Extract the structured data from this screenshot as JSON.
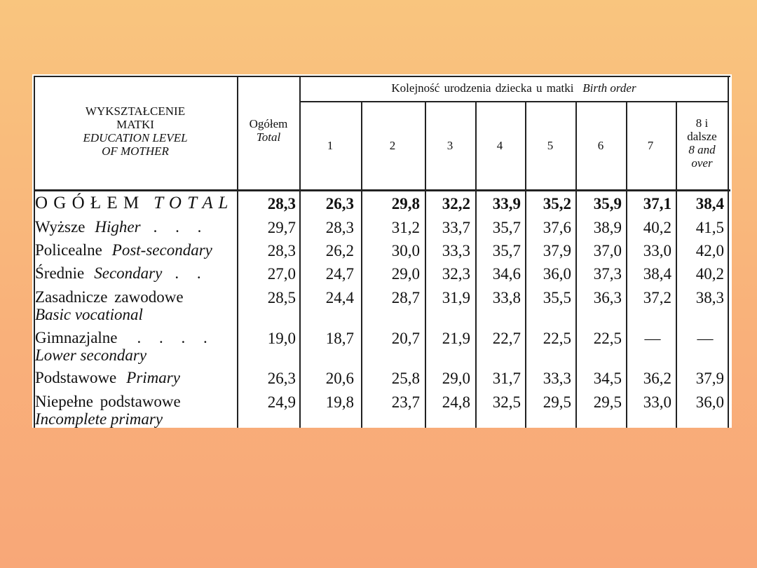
{
  "header": {
    "education_line1": "WYKSZTAŁCENIE",
    "education_line2": "MATKI",
    "education_en_line1": "EDUCATION LEVEL",
    "education_en_line2": "OF MOTHER",
    "total_pl": "Ogółem",
    "total_en": "Total",
    "birth_order_pl": "Kolejność urodzenia dziecka u matki",
    "birth_order_en": "Birth order",
    "columns": [
      "1",
      "2",
      "3",
      "4",
      "5",
      "6",
      "7"
    ],
    "last_col_pl_1": "8 i",
    "last_col_pl_2": "dalsze",
    "last_col_en_1": "8 and",
    "last_col_en_2": "over"
  },
  "rows": [
    {
      "label_pl": "O G Ó Ł E M",
      "label_en": "T O T A L",
      "values": [
        "28,3",
        "26,3",
        "29,8",
        "32,2",
        "33,9",
        "35,2",
        "35,9",
        "37,1",
        "38,4"
      ]
    },
    {
      "label_pl": "Wyższe",
      "label_en": "Higher",
      "dots": ". . .",
      "values": [
        "29,7",
        "28,3",
        "31,2",
        "33,7",
        "35,7",
        "37,6",
        "38,9",
        "40,2",
        "41,5"
      ]
    },
    {
      "label_pl": "Policealne",
      "label_en": "Post-secondary",
      "values": [
        "28,3",
        "26,2",
        "30,0",
        "33,3",
        "35,7",
        "37,9",
        "37,0",
        "33,0",
        "42,0"
      ]
    },
    {
      "label_pl": "Średnie",
      "label_en": "Secondary",
      "dots": ". .",
      "values": [
        "27,0",
        "24,7",
        "29,0",
        "32,3",
        "34,6",
        "36,0",
        "37,3",
        "38,4",
        "40,2"
      ]
    },
    {
      "label_pl": "Zasadnicze zawodowe",
      "label_en": "Basic vocational",
      "values": [
        "28,5",
        "24,4",
        "28,7",
        "31,9",
        "33,8",
        "35,5",
        "36,3",
        "37,2",
        "38,3"
      ]
    },
    {
      "label_pl": "Gimnazjalne",
      "label_en": "Lower secondary",
      "dots": ". . . .",
      "values": [
        "19,0",
        "18,7",
        "20,7",
        "21,9",
        "22,7",
        "22,5",
        "22,5",
        "—",
        "—"
      ]
    },
    {
      "label_pl": "Podstawowe",
      "label_en": "Primary",
      "values": [
        "26,3",
        "20,6",
        "25,8",
        "29,0",
        "31,7",
        "33,3",
        "34,5",
        "36,2",
        "37,9"
      ]
    },
    {
      "label_pl": "Niepełne podstawowe",
      "label_en": "Incomplete primary",
      "values": [
        "24,9",
        "19,8",
        "23,7",
        "24,8",
        "32,5",
        "29,5",
        "29,5",
        "33,0",
        "36,0"
      ]
    }
  ]
}
